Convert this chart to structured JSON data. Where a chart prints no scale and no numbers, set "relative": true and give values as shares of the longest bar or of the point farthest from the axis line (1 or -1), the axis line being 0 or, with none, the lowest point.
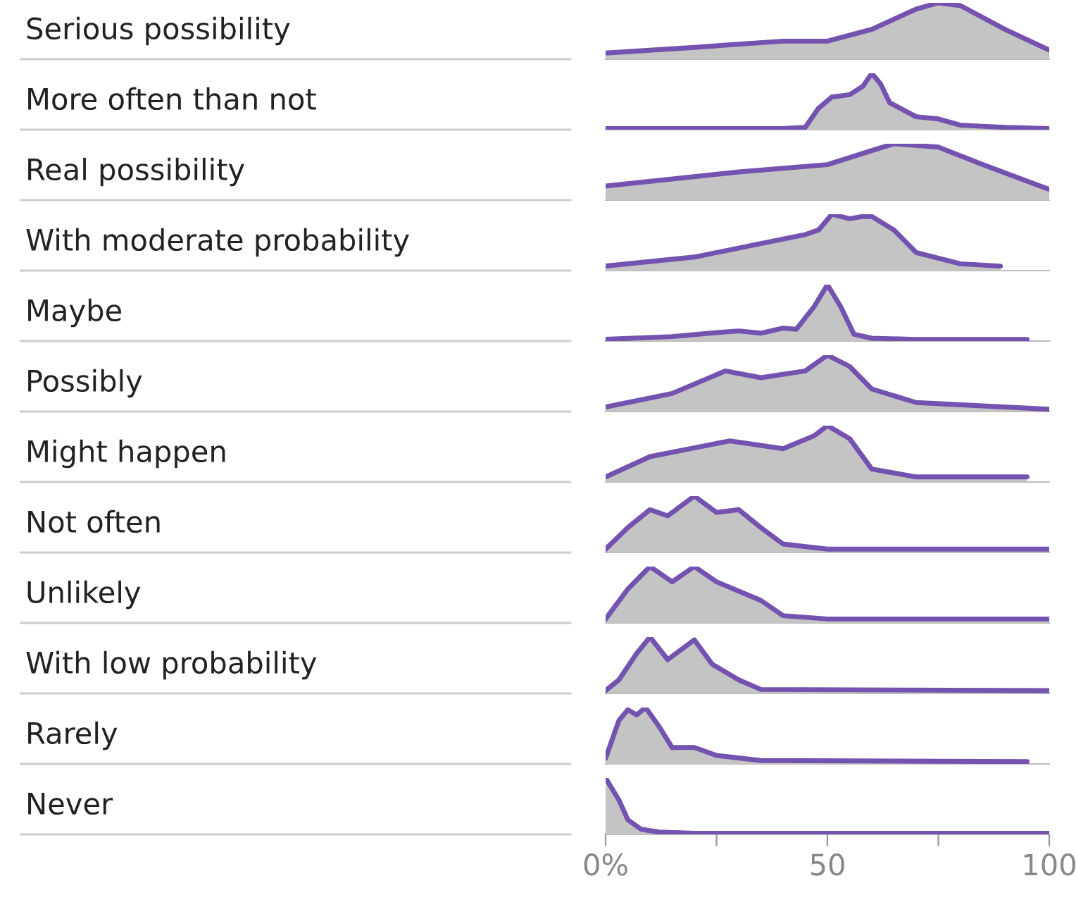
{
  "chart_data": [
    {
      "type": "area",
      "relative": true,
      "ylabel": "Serious possibility",
      "color": "#7352b0",
      "xlim": [
        0,
        100
      ],
      "tick_labels": false,
      "x": [
        0,
        20,
        40,
        50,
        60,
        70,
        75,
        80,
        90,
        100
      ],
      "values": [
        0.11,
        0.21,
        0.32,
        0.32,
        0.53,
        0.89,
        1,
        0.95,
        0.53,
        0.16
      ]
    },
    {
      "type": "area",
      "relative": true,
      "ylabel": "More often than not",
      "color": "#7352b0",
      "xlim": [
        0,
        100
      ],
      "tick_labels": false,
      "x": [
        0,
        40,
        45,
        48,
        51,
        55,
        58,
        60,
        62,
        64,
        70,
        75,
        80,
        90,
        100
      ],
      "values": [
        0.02,
        0.02,
        0.04,
        0.38,
        0.58,
        0.62,
        0.77,
        1,
        0.81,
        0.48,
        0.23,
        0.19,
        0.08,
        0.04,
        0.02
      ]
    },
    {
      "type": "area",
      "relative": true,
      "ylabel": "Real possibility",
      "color": "#7352b0",
      "xlim": [
        0,
        100
      ],
      "tick_labels": false,
      "x": [
        0,
        30,
        50,
        60,
        65,
        75,
        85,
        100
      ],
      "values": [
        0.25,
        0.5,
        0.63,
        0.88,
        1,
        0.94,
        0.63,
        0.19
      ]
    },
    {
      "type": "area",
      "relative": true,
      "ylabel": "With moderate probability",
      "color": "#7352b0",
      "xlim": [
        0,
        100
      ],
      "tick_labels": false,
      "x": [
        0,
        20,
        35,
        45,
        48,
        51,
        55,
        58,
        60,
        65,
        70,
        80,
        89
      ],
      "values": [
        0.08,
        0.24,
        0.48,
        0.64,
        0.72,
        1,
        0.92,
        0.96,
        0.96,
        0.72,
        0.32,
        0.12,
        0.08
      ]
    },
    {
      "type": "area",
      "relative": true,
      "ylabel": "Maybe",
      "color": "#7352b0",
      "xlim": [
        0,
        100
      ],
      "tick_labels": false,
      "x": [
        0,
        15,
        25,
        30,
        35,
        40,
        43,
        47,
        50,
        53,
        56,
        60,
        70,
        95
      ],
      "values": [
        0.03,
        0.08,
        0.15,
        0.18,
        0.14,
        0.23,
        0.21,
        0.61,
        1,
        0.61,
        0.12,
        0.05,
        0.03,
        0.03
      ]
    },
    {
      "type": "area",
      "relative": true,
      "ylabel": "Possibly",
      "color": "#7352b0",
      "xlim": [
        0,
        100
      ],
      "tick_labels": false,
      "x": [
        0,
        15,
        27,
        35,
        45,
        50,
        55,
        60,
        70,
        100
      ],
      "values": [
        0.08,
        0.32,
        0.72,
        0.6,
        0.72,
        1,
        0.8,
        0.4,
        0.16,
        0.04
      ]
    },
    {
      "type": "area",
      "relative": true,
      "ylabel": "Might happen",
      "color": "#7352b0",
      "xlim": [
        0,
        100
      ],
      "tick_labels": false,
      "x": [
        0,
        10,
        28,
        40,
        47,
        50,
        55,
        60,
        70,
        95
      ],
      "values": [
        0.09,
        0.45,
        0.73,
        0.59,
        0.82,
        1,
        0.77,
        0.23,
        0.09,
        0.09
      ]
    },
    {
      "type": "area",
      "relative": true,
      "ylabel": "Not often",
      "color": "#7352b0",
      "xlim": [
        0,
        100
      ],
      "tick_labels": false,
      "x": [
        0,
        5,
        10,
        14,
        20,
        25,
        30,
        35,
        40,
        50,
        100
      ],
      "values": [
        0.06,
        0.44,
        0.76,
        0.65,
        1,
        0.71,
        0.76,
        0.44,
        0.15,
        0.06,
        0.06
      ]
    },
    {
      "type": "area",
      "relative": true,
      "ylabel": "Unlikely",
      "color": "#7352b0",
      "xlim": [
        0,
        100
      ],
      "tick_labels": false,
      "x": [
        0,
        5,
        10,
        15,
        20,
        25,
        35,
        40,
        50,
        100
      ],
      "values": [
        0.07,
        0.6,
        1,
        0.73,
        1,
        0.73,
        0.4,
        0.13,
        0.07,
        0.07
      ]
    },
    {
      "type": "area",
      "relative": true,
      "ylabel": "With low probability",
      "color": "#7352b0",
      "xlim": [
        0,
        100
      ],
      "tick_labels": false,
      "x": [
        0,
        3,
        7,
        10,
        14,
        20,
        24,
        30,
        35,
        100
      ],
      "values": [
        0.05,
        0.24,
        0.71,
        1,
        0.6,
        0.95,
        0.52,
        0.24,
        0.07,
        0.05
      ]
    },
    {
      "type": "area",
      "relative": true,
      "ylabel": "Rarely",
      "color": "#7352b0",
      "xlim": [
        0,
        100
      ],
      "tick_labels": false,
      "x": [
        0,
        3,
        5,
        7,
        9,
        12,
        15,
        20,
        25,
        35,
        95
      ],
      "values": [
        0.1,
        0.77,
        0.96,
        0.87,
        1,
        0.67,
        0.29,
        0.29,
        0.15,
        0.06,
        0.04
      ]
    },
    {
      "type": "area",
      "relative": true,
      "ylabel": "Never",
      "color": "#7352b0",
      "xlim": [
        0,
        100
      ],
      "xticks": [
        {
          "value": 0,
          "label": "0%"
        },
        {
          "value": 25,
          "label": null
        },
        50,
        {
          "value": 75,
          "label": null
        },
        100
      ],
      "tick_labels": "x",
      "x": [
        0,
        3,
        5,
        8,
        12,
        20,
        100
      ],
      "values": [
        1,
        0.61,
        0.26,
        0.09,
        0.04,
        0.02,
        0.02
      ]
    }
  ]
}
